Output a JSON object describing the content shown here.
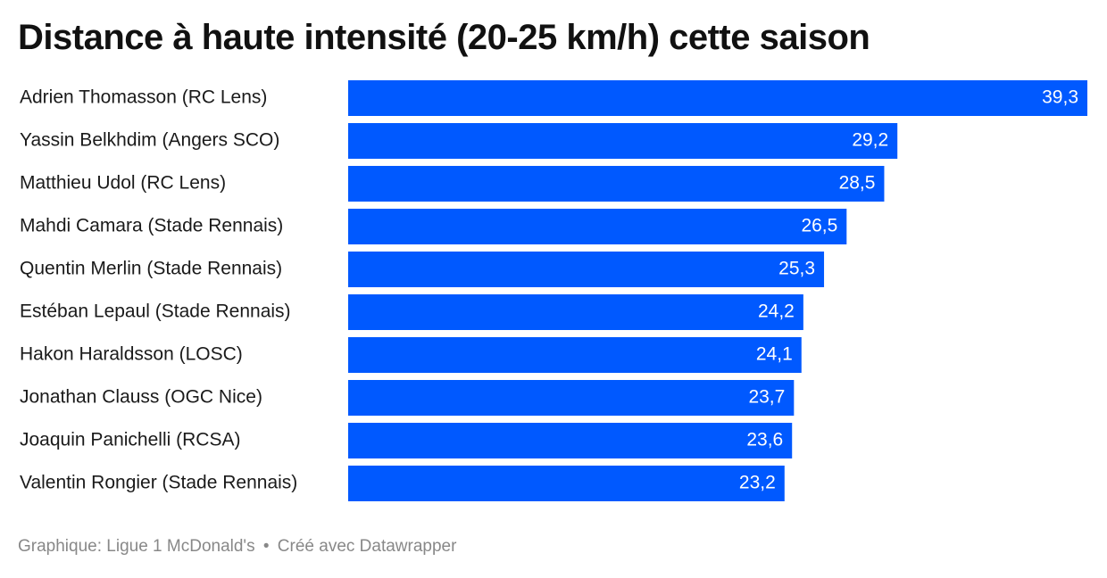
{
  "chart_data": {
    "type": "bar",
    "orientation": "horizontal",
    "title": "Distance à haute intensité (20-25 km/h) cette saison",
    "categories": [
      "Adrien Thomasson (RC Lens)",
      "Yassin Belkhdim (Angers SCO)",
      "Matthieu Udol (RC Lens)",
      "Mahdi Camara (Stade Rennais)",
      "Quentin Merlin (Stade Rennais)",
      "Estéban Lepaul (Stade Rennais)",
      "Hakon Haraldsson (LOSC)",
      "Jonathan Clauss (OGC Nice)",
      "Joaquin Panichelli (RCSA)",
      "Valentin Rongier (Stade Rennais)"
    ],
    "values": [
      39.3,
      29.2,
      28.5,
      26.5,
      25.3,
      24.2,
      24.1,
      23.7,
      23.6,
      23.2
    ],
    "value_labels": [
      "39,3",
      "29,2",
      "28,5",
      "26,5",
      "25,3",
      "24,2",
      "24,1",
      "23,7",
      "23,6",
      "23,2"
    ],
    "xlim": [
      0,
      39.3
    ],
    "grid": false,
    "legend": "none",
    "bar_color": "#0059ff",
    "value_label_color": "#ffffff"
  },
  "footer": {
    "source": "Graphique: Ligue 1 McDonald's",
    "separator": "•",
    "credit": "Créé avec Datawrapper"
  }
}
